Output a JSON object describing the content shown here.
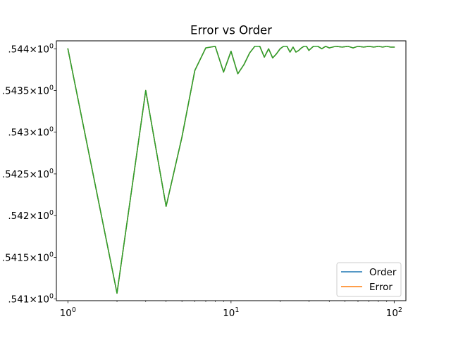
{
  "chart_data": {
    "type": "line",
    "title": "Error vs Order",
    "xlabel": "",
    "ylabel": "",
    "x_scale": "log",
    "xlim": [
      0.85,
      118
    ],
    "ylim": [
      1.54098,
      1.544095
    ],
    "grid": false,
    "legend_position": "lower-right",
    "x_ticks": [
      {
        "value": 1,
        "base": "10",
        "exp": "0"
      },
      {
        "value": 10,
        "base": "10",
        "exp": "1"
      },
      {
        "value": 100,
        "base": "10",
        "exp": "2"
      }
    ],
    "y_ticks": [
      {
        "value": 1.541,
        "prefix": ".541",
        "base": "10",
        "exp": "0"
      },
      {
        "value": 1.5415,
        "prefix": ".5415",
        "base": "10",
        "exp": "0"
      },
      {
        "value": 1.542,
        "prefix": ".542",
        "base": "10",
        "exp": "0"
      },
      {
        "value": 1.5425,
        "prefix": ".5425",
        "base": "10",
        "exp": "0"
      },
      {
        "value": 1.543,
        "prefix": ".543",
        "base": "10",
        "exp": "0"
      },
      {
        "value": 1.5435,
        "prefix": ".5435",
        "base": "10",
        "exp": "0"
      },
      {
        "value": 1.544,
        "prefix": ".544",
        "base": "10",
        "exp": "0"
      }
    ],
    "x": [
      1,
      2,
      3,
      4,
      5,
      6,
      7,
      8,
      9,
      10,
      11,
      12,
      13,
      14,
      15,
      16,
      17,
      18,
      19,
      20,
      21,
      22,
      23,
      24,
      25,
      26,
      27,
      28,
      29,
      30,
      32,
      34,
      36,
      38,
      40,
      44,
      48,
      52,
      56,
      60,
      65,
      70,
      75,
      80,
      85,
      90,
      95,
      100
    ],
    "series": [
      {
        "name": "Order",
        "color": "#1f77b4",
        "values": [
          1.544,
          1.54107,
          1.5435,
          1.54211,
          1.54294,
          1.54374,
          1.54401,
          1.54403,
          1.54372,
          1.54397,
          1.5437,
          1.54381,
          1.54395,
          1.54403,
          1.54403,
          1.5439,
          1.544,
          1.54389,
          1.54394,
          1.544,
          1.54403,
          1.54403,
          1.54396,
          1.54402,
          1.54396,
          1.54398,
          1.54401,
          1.54403,
          1.54403,
          1.54398,
          1.54403,
          1.54403,
          1.544,
          1.54403,
          1.54401,
          1.54403,
          1.54402,
          1.54403,
          1.54401,
          1.54403,
          1.54402,
          1.54403,
          1.54402,
          1.54403,
          1.54402,
          1.54403,
          1.54402,
          1.54402
        ]
      },
      {
        "name": "Error",
        "color": "#ff7f0e",
        "values": [
          1.544,
          1.54107,
          1.5435,
          1.54211,
          1.54294,
          1.54374,
          1.54401,
          1.54403,
          1.54372,
          1.54397,
          1.5437,
          1.54381,
          1.54395,
          1.54403,
          1.54403,
          1.5439,
          1.544,
          1.54389,
          1.54394,
          1.544,
          1.54403,
          1.54403,
          1.54396,
          1.54402,
          1.54396,
          1.54398,
          1.54401,
          1.54403,
          1.54403,
          1.54398,
          1.54403,
          1.54403,
          1.544,
          1.54403,
          1.54401,
          1.54403,
          1.54402,
          1.54403,
          1.54401,
          1.54403,
          1.54402,
          1.54403,
          1.54402,
          1.54403,
          1.54402,
          1.54403,
          1.54402,
          1.54402
        ]
      },
      {
        "color": "#2ca02c",
        "values": [
          1.544,
          1.54107,
          1.5435,
          1.54211,
          1.54294,
          1.54374,
          1.54401,
          1.54403,
          1.54372,
          1.54397,
          1.5437,
          1.54381,
          1.54395,
          1.54403,
          1.54403,
          1.5439,
          1.544,
          1.54389,
          1.54394,
          1.544,
          1.54403,
          1.54403,
          1.54396,
          1.54402,
          1.54396,
          1.54398,
          1.54401,
          1.54403,
          1.54403,
          1.54398,
          1.54403,
          1.54403,
          1.544,
          1.54403,
          1.54401,
          1.54403,
          1.54402,
          1.54403,
          1.54401,
          1.54403,
          1.54402,
          1.54403,
          1.54402,
          1.54403,
          1.54402,
          1.54403,
          1.54402,
          1.54402
        ]
      }
    ],
    "legend": [
      {
        "label": "Order",
        "color": "#1f77b4"
      },
      {
        "label": "Error",
        "color": "#ff7f0e"
      }
    ]
  }
}
